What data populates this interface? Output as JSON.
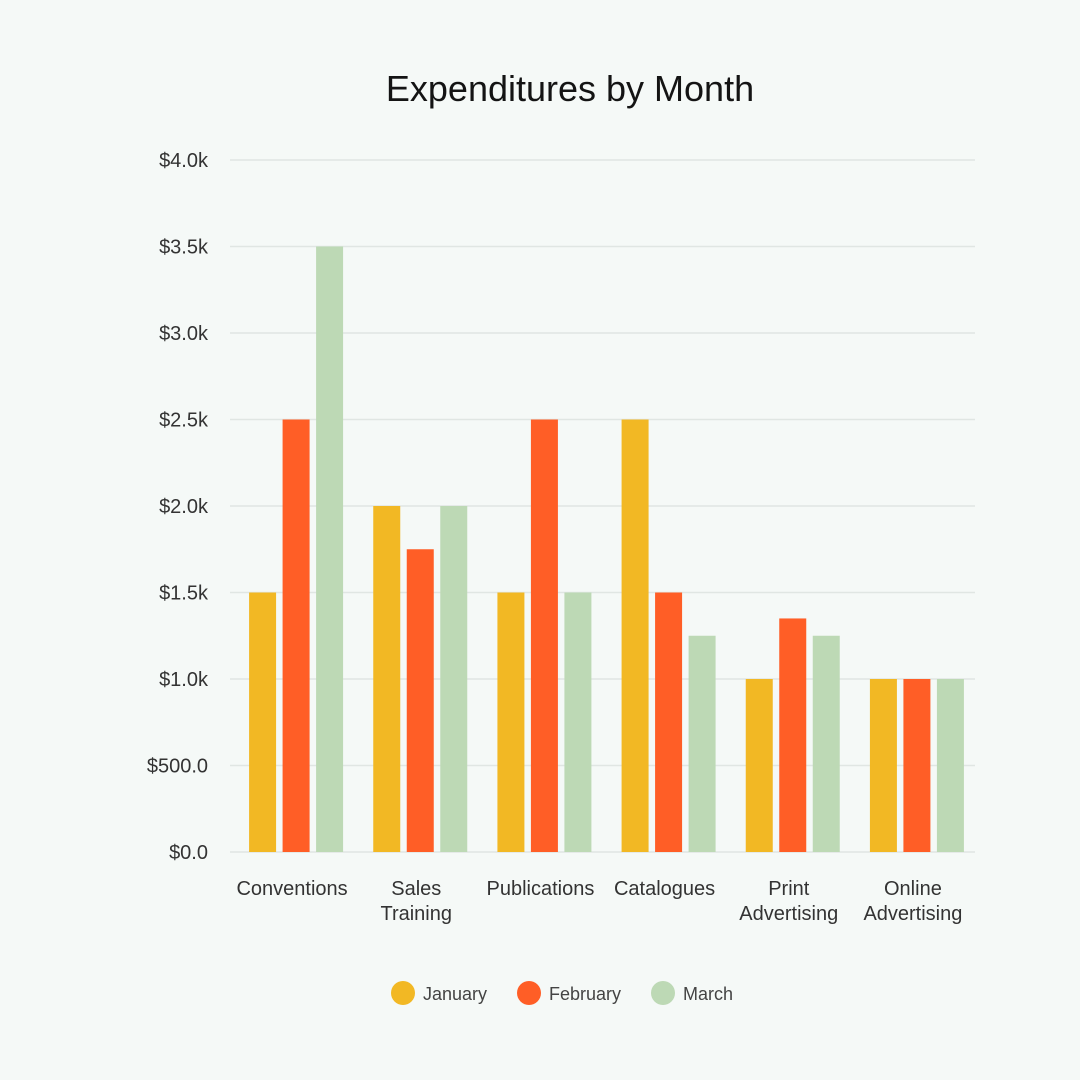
{
  "chart_data": {
    "type": "bar",
    "title": "Expenditures by Month",
    "xlabel": "",
    "ylabel": "",
    "categories": [
      [
        "Conventions"
      ],
      [
        "Sales",
        "Training"
      ],
      [
        "Publications"
      ],
      [
        "Catalogues"
      ],
      [
        "Print",
        "Advertising"
      ],
      [
        "Online",
        "Advertising"
      ]
    ],
    "series": [
      {
        "name": "January",
        "color": "#f2b824",
        "values": [
          1500,
          2000,
          1500,
          2500,
          1000,
          1000
        ]
      },
      {
        "name": "February",
        "color": "#ff5e26",
        "values": [
          2500,
          1750,
          2500,
          1500,
          1350,
          1000
        ]
      },
      {
        "name": "March",
        "color": "#bdd9b5",
        "values": [
          3500,
          2000,
          1500,
          1250,
          1250,
          1000
        ]
      }
    ],
    "ylim": [
      0,
      4000
    ],
    "yticks": [
      0,
      500,
      1000,
      1500,
      2000,
      2500,
      3000,
      3500,
      4000
    ],
    "ytick_labels": [
      "$0.0",
      "$500.0",
      "$1.0k",
      "$1.5k",
      "$2.0k",
      "$2.5k",
      "$3.0k",
      "$3.5k",
      "$4.0k"
    ],
    "grid": true,
    "legend_position": "bottom-center"
  }
}
